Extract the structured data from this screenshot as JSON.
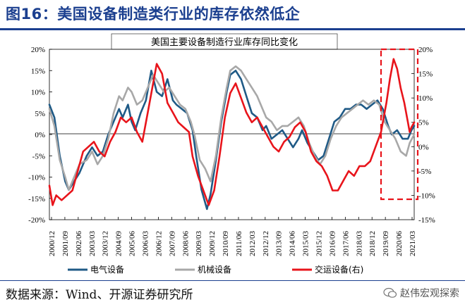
{
  "header": {
    "figure_title": "图16：美国设备制造类行业的库存依然低企"
  },
  "footer": {
    "source": "数据来源：Wind、开源证券研究所",
    "watermark": "赵伟宏观探索",
    "watermark_icon": "wechat-icon"
  },
  "colors": {
    "electrical": "#1f5a86",
    "machinery": "#a8a8a8",
    "transport": "#e8141b",
    "title": "#1b3f8f"
  },
  "chart_data": {
    "type": "line",
    "title": "美国主要设备制造行业库存同比变化",
    "x_ticks": [
      "2000/12",
      "2001/09",
      "2002/06",
      "2003/03",
      "2003/12",
      "2004/09",
      "2005/06",
      "2006/03",
      "2006/12",
      "2007/09",
      "2008/06",
      "2009/03",
      "2009/12",
      "2010/09",
      "2011/06",
      "2012/03",
      "2012/12",
      "2013/09",
      "2014/06",
      "2015/03",
      "2015/12",
      "2016/09",
      "2017/06",
      "2018/03",
      "2018/12",
      "2019/09",
      "2020/06",
      "2021/03"
    ],
    "x_range": [
      2000.92,
      2021.25
    ],
    "y_left": {
      "ticks": [
        "20%",
        "15%",
        "10%",
        "5%",
        "0%",
        "-5%",
        "-10%",
        "-15%",
        "-20%"
      ],
      "range": [
        -20,
        20
      ]
    },
    "y_right": {
      "ticks": [
        "20%",
        "15%",
        "10%",
        "5%",
        "0%",
        "-5%",
        "-10%",
        "-15%"
      ],
      "range": [
        -15,
        20
      ]
    },
    "series": [
      {
        "name": "电气设备",
        "axis": "left",
        "points": [
          [
            2000.92,
            7
          ],
          [
            2001.2,
            4
          ],
          [
            2001.5,
            -5
          ],
          [
            2001.8,
            -11
          ],
          [
            2002.0,
            -13
          ],
          [
            2002.3,
            -11
          ],
          [
            2002.6,
            -9
          ],
          [
            2003.0,
            -5
          ],
          [
            2003.3,
            -3
          ],
          [
            2003.6,
            -5
          ],
          [
            2003.9,
            -4
          ],
          [
            2004.2,
            0
          ],
          [
            2004.5,
            3
          ],
          [
            2004.8,
            6
          ],
          [
            2005.0,
            4
          ],
          [
            2005.3,
            7
          ],
          [
            2005.5,
            3
          ],
          [
            2005.7,
            1
          ],
          [
            2006.0,
            5
          ],
          [
            2006.3,
            8
          ],
          [
            2006.6,
            15
          ],
          [
            2006.9,
            10
          ],
          [
            2007.2,
            9
          ],
          [
            2007.5,
            13
          ],
          [
            2007.8,
            8
          ],
          [
            2008.0,
            7
          ],
          [
            2008.3,
            6
          ],
          [
            2008.6,
            5
          ],
          [
            2008.9,
            1
          ],
          [
            2009.1,
            -5
          ],
          [
            2009.4,
            -13
          ],
          [
            2009.7,
            -17.5
          ],
          [
            2009.9,
            -14
          ],
          [
            2010.2,
            -6
          ],
          [
            2010.5,
            3
          ],
          [
            2010.8,
            10
          ],
          [
            2011.0,
            14
          ],
          [
            2011.3,
            15
          ],
          [
            2011.6,
            13
          ],
          [
            2011.9,
            9
          ],
          [
            2012.2,
            5
          ],
          [
            2012.5,
            4
          ],
          [
            2012.8,
            1
          ],
          [
            2013.0,
            2
          ],
          [
            2013.3,
            -1
          ],
          [
            2013.6,
            0
          ],
          [
            2013.9,
            1
          ],
          [
            2014.2,
            -1
          ],
          [
            2014.5,
            -3
          ],
          [
            2014.8,
            -1
          ],
          [
            2015.0,
            1
          ],
          [
            2015.3,
            -2
          ],
          [
            2015.6,
            -4
          ],
          [
            2015.9,
            -6
          ],
          [
            2016.2,
            -5
          ],
          [
            2016.5,
            -1
          ],
          [
            2016.8,
            3
          ],
          [
            2017.1,
            4
          ],
          [
            2017.4,
            6
          ],
          [
            2017.7,
            6
          ],
          [
            2018.0,
            7
          ],
          [
            2018.3,
            7
          ],
          [
            2018.6,
            6
          ],
          [
            2018.9,
            7
          ],
          [
            2019.2,
            8
          ],
          [
            2019.5,
            6
          ],
          [
            2019.8,
            2
          ],
          [
            2020.0,
            0
          ],
          [
            2020.3,
            1
          ],
          [
            2020.6,
            -1
          ],
          [
            2020.9,
            -1
          ],
          [
            2021.1,
            1
          ],
          [
            2021.25,
            2
          ]
        ]
      },
      {
        "name": "机械设备",
        "axis": "left",
        "points": [
          [
            2000.92,
            6
          ],
          [
            2001.2,
            2
          ],
          [
            2001.5,
            -6
          ],
          [
            2001.8,
            -10
          ],
          [
            2002.0,
            -13
          ],
          [
            2002.3,
            -10
          ],
          [
            2002.6,
            -7
          ],
          [
            2003.0,
            -6
          ],
          [
            2003.3,
            -4
          ],
          [
            2003.6,
            -7
          ],
          [
            2003.9,
            -5
          ],
          [
            2004.2,
            -1
          ],
          [
            2004.5,
            5
          ],
          [
            2004.8,
            9
          ],
          [
            2005.0,
            8
          ],
          [
            2005.3,
            11
          ],
          [
            2005.5,
            10
          ],
          [
            2005.8,
            7
          ],
          [
            2006.1,
            8
          ],
          [
            2006.4,
            11
          ],
          [
            2006.7,
            14
          ],
          [
            2007.0,
            12
          ],
          [
            2007.3,
            10
          ],
          [
            2007.6,
            11
          ],
          [
            2007.9,
            9
          ],
          [
            2008.2,
            7
          ],
          [
            2008.5,
            6
          ],
          [
            2008.8,
            3
          ],
          [
            2009.0,
            0
          ],
          [
            2009.3,
            -6
          ],
          [
            2009.6,
            -8
          ],
          [
            2009.9,
            -11
          ],
          [
            2010.2,
            -5
          ],
          [
            2010.5,
            4
          ],
          [
            2010.8,
            11
          ],
          [
            2011.0,
            15
          ],
          [
            2011.3,
            16
          ],
          [
            2011.6,
            15
          ],
          [
            2011.9,
            13
          ],
          [
            2012.2,
            11
          ],
          [
            2012.5,
            9
          ],
          [
            2012.8,
            6
          ],
          [
            2013.0,
            4
          ],
          [
            2013.3,
            3
          ],
          [
            2013.6,
            1
          ],
          [
            2013.9,
            2
          ],
          [
            2014.2,
            2
          ],
          [
            2014.5,
            3
          ],
          [
            2014.8,
            4
          ],
          [
            2015.1,
            2
          ],
          [
            2015.4,
            -2
          ],
          [
            2015.7,
            -5
          ],
          [
            2016.0,
            -7
          ],
          [
            2016.3,
            -5
          ],
          [
            2016.6,
            -1
          ],
          [
            2016.9,
            2
          ],
          [
            2017.2,
            4
          ],
          [
            2017.5,
            5
          ],
          [
            2017.8,
            6
          ],
          [
            2018.1,
            7
          ],
          [
            2018.4,
            8
          ],
          [
            2018.7,
            7
          ],
          [
            2019.0,
            8
          ],
          [
            2019.3,
            7
          ],
          [
            2019.6,
            3
          ],
          [
            2019.9,
            1
          ],
          [
            2020.2,
            -1
          ],
          [
            2020.5,
            -4
          ],
          [
            2020.8,
            -5
          ],
          [
            2021.0,
            -2
          ],
          [
            2021.25,
            0
          ]
        ]
      },
      {
        "name": "交运设备(右)",
        "axis": "right",
        "points": [
          [
            2000.92,
            -8
          ],
          [
            2001.1,
            -12
          ],
          [
            2001.3,
            -10
          ],
          [
            2001.6,
            -11
          ],
          [
            2001.9,
            -10
          ],
          [
            2002.2,
            -9
          ],
          [
            2002.5,
            -5
          ],
          [
            2002.8,
            -1
          ],
          [
            2003.1,
            0
          ],
          [
            2003.4,
            1
          ],
          [
            2003.7,
            -1
          ],
          [
            2004.0,
            -2
          ],
          [
            2004.3,
            1
          ],
          [
            2004.6,
            3
          ],
          [
            2004.9,
            6
          ],
          [
            2005.2,
            5
          ],
          [
            2005.5,
            6
          ],
          [
            2005.8,
            3
          ],
          [
            2006.1,
            1
          ],
          [
            2006.4,
            7
          ],
          [
            2006.7,
            13
          ],
          [
            2006.9,
            17
          ],
          [
            2007.2,
            15
          ],
          [
            2007.5,
            9
          ],
          [
            2007.8,
            7
          ],
          [
            2008.1,
            5
          ],
          [
            2008.4,
            4
          ],
          [
            2008.7,
            3
          ],
          [
            2008.9,
            -2
          ],
          [
            2009.2,
            -6
          ],
          [
            2009.5,
            -9
          ],
          [
            2009.8,
            -12
          ],
          [
            2010.1,
            -9
          ],
          [
            2010.4,
            -2
          ],
          [
            2010.7,
            6
          ],
          [
            2011.0,
            11
          ],
          [
            2011.3,
            13
          ],
          [
            2011.6,
            10
          ],
          [
            2011.9,
            7
          ],
          [
            2012.2,
            5
          ],
          [
            2012.5,
            6
          ],
          [
            2012.8,
            4
          ],
          [
            2013.1,
            2
          ],
          [
            2013.4,
            0
          ],
          [
            2013.7,
            -1
          ],
          [
            2014.0,
            1
          ],
          [
            2014.3,
            2
          ],
          [
            2014.6,
            4
          ],
          [
            2014.9,
            5
          ],
          [
            2015.2,
            3
          ],
          [
            2015.5,
            -1
          ],
          [
            2015.8,
            -3
          ],
          [
            2016.1,
            -4
          ],
          [
            2016.4,
            -6
          ],
          [
            2016.7,
            -9
          ],
          [
            2017.0,
            -9
          ],
          [
            2017.3,
            -7
          ],
          [
            2017.6,
            -5
          ],
          [
            2017.9,
            -6
          ],
          [
            2018.2,
            -4
          ],
          [
            2018.5,
            -4
          ],
          [
            2018.8,
            -3
          ],
          [
            2019.1,
            0
          ],
          [
            2019.4,
            3
          ],
          [
            2019.7,
            9
          ],
          [
            2019.9,
            14
          ],
          [
            2020.1,
            18
          ],
          [
            2020.3,
            16
          ],
          [
            2020.5,
            12
          ],
          [
            2020.7,
            9
          ],
          [
            2020.9,
            5
          ],
          [
            2021.0,
            3
          ],
          [
            2021.1,
            4
          ],
          [
            2021.25,
            5
          ]
        ]
      }
    ],
    "legend": [
      "电气设备",
      "机械设备",
      "交运设备(右)"
    ],
    "annotation": "red dashed box highlighting 2019/09–2021/03",
    "grid": false
  }
}
